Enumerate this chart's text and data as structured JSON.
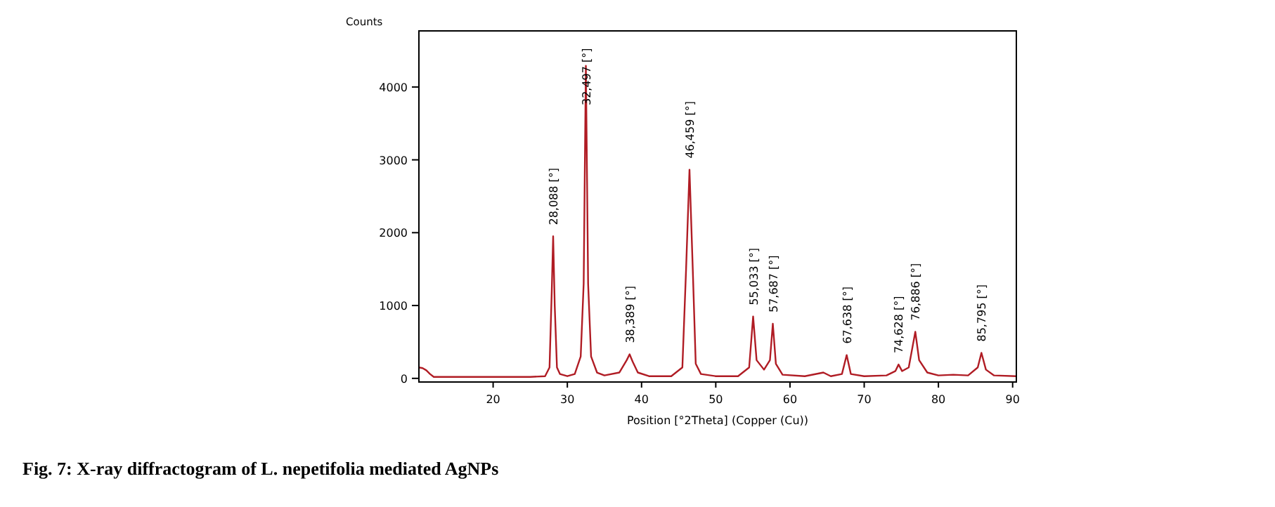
{
  "chart_data": {
    "type": "line",
    "title": "Fig. 7: X-ray diffractogram of L. nepetifolia mediated AgNPs",
    "xlabel": "Position [°2Theta] (Copper (Cu))",
    "ylabel": "Counts",
    "xlim": [
      10,
      90.5
    ],
    "ylim": [
      -50,
      4770
    ],
    "xticks": [
      20,
      30,
      40,
      50,
      60,
      70,
      80,
      90
    ],
    "yticks": [
      0,
      1000,
      2000,
      3000,
      4000
    ],
    "grid": false,
    "marker": "none",
    "line_style": "solid",
    "series": [
      {
        "color": "#b01c24",
        "x": [
          10,
          10.5,
          11,
          11.5,
          12,
          15,
          20,
          25,
          27,
          27.6,
          27.9,
          28.088,
          28.3,
          28.6,
          29,
          30,
          31,
          31.8,
          32.2,
          32.497,
          32.8,
          33.2,
          34,
          35,
          37,
          38,
          38.389,
          38.8,
          39.5,
          41,
          44,
          45.5,
          46.0,
          46.459,
          46.9,
          47.3,
          48,
          50,
          53,
          54.5,
          55.033,
          55.5,
          56.5,
          57.3,
          57.687,
          58.1,
          59,
          62,
          64.5,
          65.5,
          67,
          67.638,
          68.2,
          70,
          73,
          74.2,
          74.628,
          75.1,
          76.0,
          76.886,
          77.4,
          78.5,
          80,
          82,
          84,
          85.3,
          85.795,
          86.4,
          87.5,
          90.5
        ],
        "values": [
          150,
          140,
          110,
          60,
          20,
          20,
          20,
          20,
          30,
          150,
          1200,
          1950,
          1000,
          150,
          60,
          30,
          60,
          300,
          1300,
          4290,
          1300,
          300,
          80,
          40,
          80,
          250,
          330,
          230,
          80,
          30,
          30,
          150,
          1500,
          2865,
          1500,
          200,
          60,
          30,
          30,
          150,
          850,
          250,
          120,
          250,
          750,
          200,
          50,
          30,
          80,
          30,
          60,
          320,
          60,
          30,
          40,
          100,
          190,
          100,
          150,
          640,
          250,
          80,
          40,
          50,
          40,
          150,
          350,
          120,
          40,
          30
        ]
      }
    ],
    "annotations": [
      {
        "text": "28,088 [°]",
        "x": 28.088,
        "y": 1950
      },
      {
        "text": "32,497 [°]",
        "x": 32.497,
        "y": 4290
      },
      {
        "text": "38,389 [°]",
        "x": 38.389,
        "y": 330
      },
      {
        "text": "46,459 [°]",
        "x": 46.459,
        "y": 2865
      },
      {
        "text": "55,033 [°]",
        "x": 55.033,
        "y": 850
      },
      {
        "text": "57,687 [°]",
        "x": 57.687,
        "y": 750
      },
      {
        "text": "67,638 [°]",
        "x": 67.638,
        "y": 320
      },
      {
        "text": "74,628 [°]",
        "x": 74.628,
        "y": 190
      },
      {
        "text": "76,886 [°]",
        "x": 76.886,
        "y": 640
      },
      {
        "text": "85,795 [°]",
        "x": 85.795,
        "y": 350
      }
    ]
  }
}
